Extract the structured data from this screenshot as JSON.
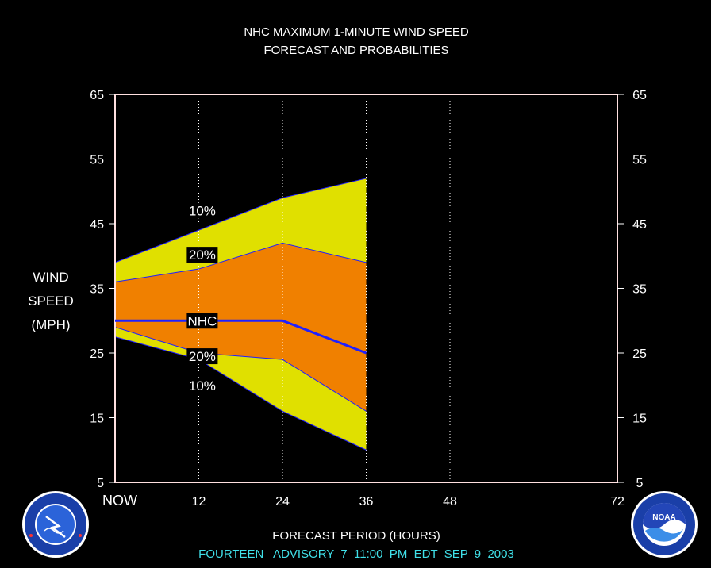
{
  "chart_data": {
    "type": "area",
    "title": "NHC MAXIMUM 1-MINUTE WIND SPEED",
    "subtitle": "FORECAST AND PROBABILITIES",
    "ylabel_lines": [
      "WIND",
      "SPEED",
      "(MPH)"
    ],
    "xlabel": "FORECAST PERIOD (HOURS)",
    "footer": "FOURTEEN   ADVISORY  7  11:00  PM  EDT  SEP  9  2003",
    "x_ticks": [
      {
        "value": 0,
        "label": "NOW"
      },
      {
        "value": 12,
        "label": "12"
      },
      {
        "value": 24,
        "label": "24"
      },
      {
        "value": 36,
        "label": "36"
      },
      {
        "value": 48,
        "label": "48"
      },
      {
        "value": 72,
        "label": "72"
      }
    ],
    "y_ticks": [
      5,
      15,
      25,
      35,
      45,
      55,
      65
    ],
    "xlim": [
      0,
      72
    ],
    "ylim": [
      5,
      65
    ],
    "x": [
      0,
      12,
      24,
      36
    ],
    "series": [
      {
        "name": "10%",
        "role": "upper",
        "values": [
          39,
          44,
          49,
          52
        ]
      },
      {
        "name": "20%",
        "role": "upper",
        "values": [
          36,
          38,
          42,
          39
        ]
      },
      {
        "name": "NHC",
        "role": "forecast",
        "values": [
          30,
          30,
          30,
          25
        ]
      },
      {
        "name": "20%",
        "role": "lower",
        "values": [
          29,
          25,
          24,
          16
        ]
      },
      {
        "name": "10%",
        "role": "lower",
        "values": [
          27.5,
          24,
          16,
          10
        ]
      }
    ],
    "band_labels": [
      {
        "text": "10%",
        "x": 12.5,
        "y": 47
      },
      {
        "text": "20%",
        "x": 12.5,
        "y": 40.2
      },
      {
        "text": "NHC",
        "x": 12.5,
        "y": 30
      },
      {
        "text": "20%",
        "x": 12.5,
        "y": 24.5
      },
      {
        "text": "10%",
        "x": 12.5,
        "y": 20
      }
    ],
    "colors": {
      "outer_band": "#e0e000",
      "inner_band": "#f08000",
      "forecast_line": "#2020ff",
      "frame": "#ffe0e0",
      "text": "#ffffff",
      "advisory": "#40e0e8"
    }
  },
  "logos": {
    "left": {
      "icon": "nws-logo-icon",
      "text": "NATIONAL WEATHER SERVICE"
    },
    "right": {
      "icon": "noaa-logo-icon",
      "text": "NOAA"
    }
  }
}
